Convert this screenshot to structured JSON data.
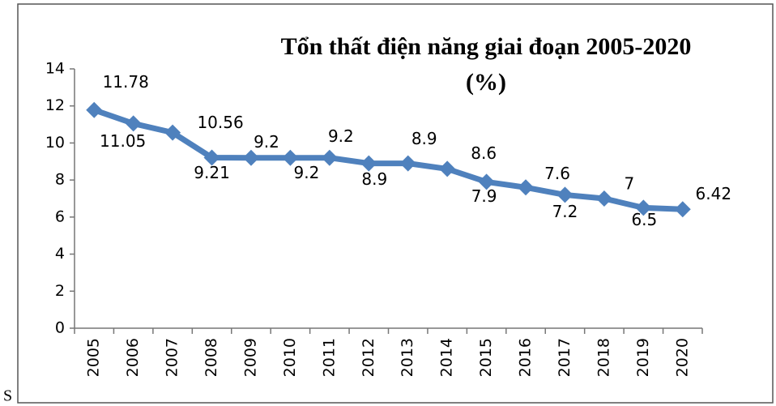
{
  "chart_data": {
    "type": "line",
    "title": "Tổn thất điện năng giai đoạn 2005-2020",
    "subtitle": "(%)",
    "categories": [
      "2005",
      "2006",
      "2007",
      "2008",
      "2009",
      "2010",
      "2011",
      "2012",
      "2013",
      "2014",
      "2015",
      "2016",
      "2017",
      "2018",
      "2019",
      "2020"
    ],
    "values": [
      11.78,
      11.05,
      10.56,
      9.21,
      9.2,
      9.2,
      9.2,
      8.9,
      8.9,
      8.6,
      7.9,
      7.6,
      7.2,
      7,
      6.5,
      6.42
    ],
    "color": "#4f81bd",
    "ylim": [
      0,
      14
    ],
    "yticks": [
      0,
      2,
      4,
      6,
      8,
      10,
      12,
      14
    ],
    "grid": false,
    "marker": "diamond"
  },
  "caption": "S"
}
